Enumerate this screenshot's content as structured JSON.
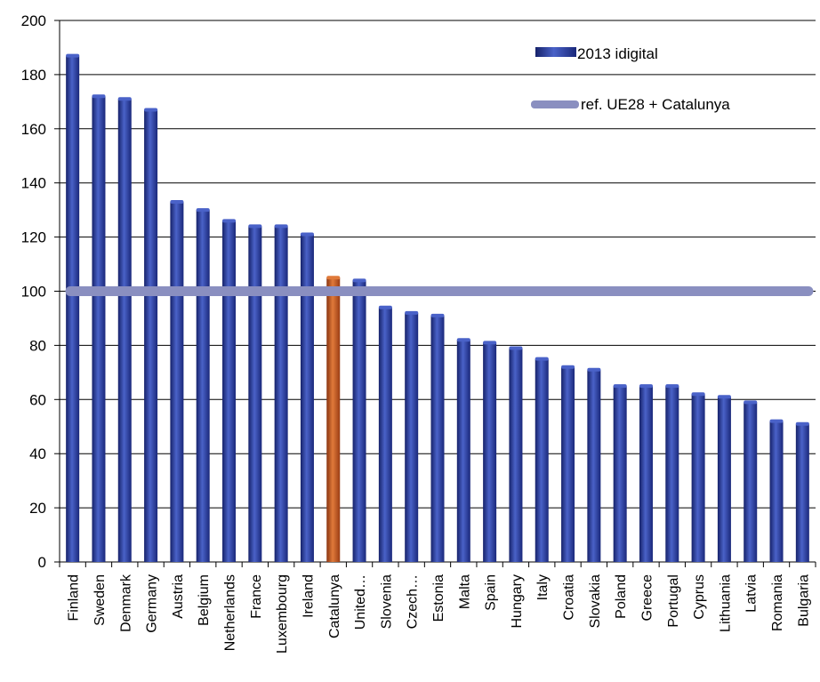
{
  "chart_data": {
    "type": "bar",
    "categories": [
      "Finland",
      "Sweden",
      "Denmark",
      "Germany",
      "Austria",
      "Belgium",
      "Netherlands",
      "France",
      "Luxembourg",
      "Ireland",
      "Catalunya",
      "United…",
      "Slovenia",
      "Czech…",
      "Estonia",
      "Malta",
      "Spain",
      "Hungary",
      "Italy",
      "Croatia",
      "Slovakia",
      "Poland",
      "Greece",
      "Portugal",
      "Cyprus",
      "Lithuania",
      "Latvia",
      "Romania",
      "Bulgaria"
    ],
    "series": [
      {
        "name": "2013 idigital",
        "values": [
          187,
          172,
          171,
          167,
          133,
          130,
          126,
          124,
          124,
          121,
          105,
          104,
          94,
          92,
          91,
          82,
          81,
          79,
          75,
          72,
          71,
          65,
          65,
          65,
          62,
          61,
          59,
          52,
          51
        ]
      }
    ],
    "reference_line": {
      "name": "ref. UE28 + Catalunya",
      "value": 100
    },
    "highlight_category": "Catalunya",
    "ylim": [
      0,
      200
    ],
    "yticks": [
      0,
      20,
      40,
      60,
      80,
      100,
      120,
      140,
      160,
      180,
      200
    ],
    "grid": true,
    "legend_position": "top-right",
    "colors": {
      "bar": "#1f2f8a",
      "bar_light": "#4a62c8",
      "highlight": "#c0501a",
      "highlight_light": "#e07a3a",
      "reference": "#8a8fc0",
      "grid": "#000000"
    }
  }
}
